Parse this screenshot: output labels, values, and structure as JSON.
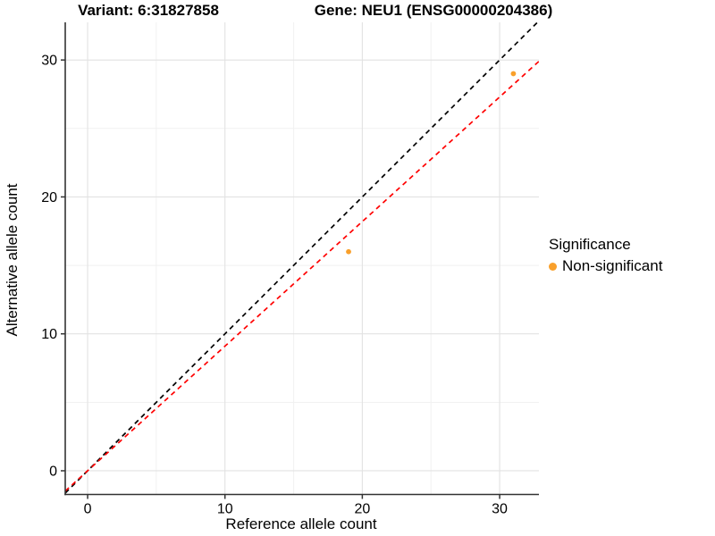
{
  "chart_data": {
    "type": "scatter",
    "titles": {
      "variant": "Variant: 6:31827858",
      "gene": "Gene: NEU1 (ENSG00000204386)"
    },
    "xlabel": "Reference allele count",
    "ylabel": "Alternative allele count",
    "xlim": [
      -1.63,
      32.86
    ],
    "ylim": [
      -1.73,
      32.75
    ],
    "xticks": [
      0,
      10,
      20,
      30
    ],
    "yticks": [
      0,
      10,
      20,
      30
    ],
    "xticks_minor": [
      5,
      15,
      25
    ],
    "yticks_minor": [
      5,
      15,
      25
    ],
    "grid": {
      "major_color": "#E2E2E2",
      "minor_color": "#F1F1F1",
      "enabled": true
    },
    "axis_color": "#333333",
    "point_color": "#F9A02B",
    "points": [
      {
        "x": 19,
        "y": 16,
        "significance": "Non-significant"
      },
      {
        "x": 31,
        "y": 29,
        "significance": "Non-significant"
      }
    ],
    "lines": [
      {
        "name": "identity-line",
        "slope": 1,
        "intercept": 0,
        "color": "#000000",
        "style": "dashed"
      },
      {
        "name": "fitted-line",
        "slope": 0.91,
        "intercept": 0,
        "color": "#FF0000",
        "style": "dashed"
      }
    ],
    "legend": {
      "title": "Significance",
      "position": "right",
      "items": [
        {
          "label": "Non-significant",
          "color": "#F9A02B"
        }
      ]
    }
  }
}
